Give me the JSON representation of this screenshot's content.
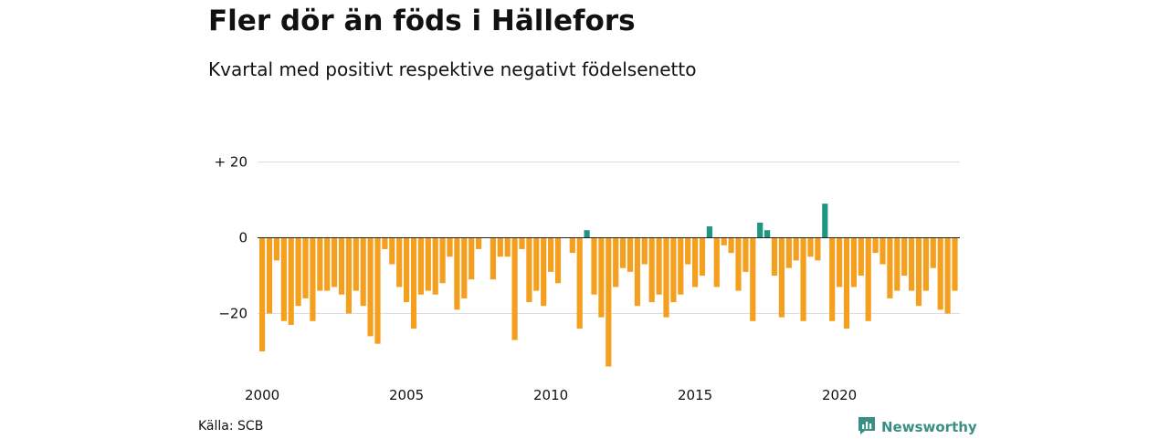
{
  "header": {
    "title": "Fler dör än föds i Hällefors",
    "subtitle": "Kvartal med positivt respektive negativt födelsenetto"
  },
  "footer": {
    "source": "Källa: SCB",
    "brand": "Newsworthy"
  },
  "colors": {
    "negative": "#f59f1e",
    "positive": "#1f9682",
    "grid": "#dddddd",
    "zero_line": "#222222",
    "brand": "#3a8f84"
  },
  "icons": {
    "logo": "newsworthy-logo-icon"
  },
  "chart_data": {
    "type": "bar",
    "x_start": "2000Q1",
    "x_tick_labels": [
      "2000",
      "2005",
      "2010",
      "2015",
      "2020"
    ],
    "y_ticks": [
      20,
      0,
      -20
    ],
    "y_tick_labels": [
      "+ 20",
      "0",
      "−20"
    ],
    "ylim": [
      -35,
      25
    ],
    "grid": true,
    "series": [
      {
        "values": [
          -30,
          -20,
          -6,
          -22,
          -23,
          -18,
          -16,
          -22,
          -14,
          -14,
          -13,
          -15,
          -20,
          -14,
          -18,
          -26,
          -28,
          -3,
          -7,
          -13,
          -17,
          -24,
          -15,
          -14,
          -15,
          -12,
          -5,
          -19,
          -16,
          -11,
          -3,
          0,
          -11,
          -5,
          -5,
          -27,
          -3,
          -17,
          -14,
          -18,
          -9,
          -12,
          0,
          -4,
          -24,
          2,
          -15,
          -21,
          -34,
          -13,
          -8,
          -9,
          -18,
          -7,
          -17,
          -15,
          -21,
          -17,
          -15,
          -7,
          -13,
          -10,
          3,
          -13,
          -2,
          -4,
          -14,
          -9,
          -22,
          4,
          2,
          -10,
          -21,
          -8,
          -6,
          -22,
          -5,
          -6,
          9,
          -22,
          -13,
          -24,
          -13,
          -10,
          -22,
          -4,
          -7,
          -16,
          -14,
          -10,
          -14,
          -18,
          -14,
          -8,
          -19,
          -20,
          -14
        ]
      }
    ]
  }
}
